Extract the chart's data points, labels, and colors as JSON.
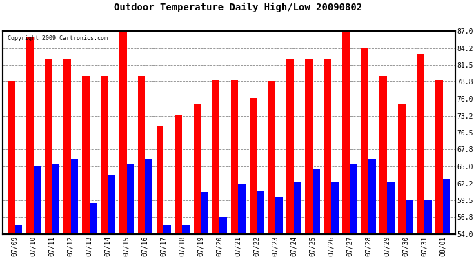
{
  "title": "Outdoor Temperature Daily High/Low 20090802",
  "copyright": "Copyright 2009 Cartronics.com",
  "dates": [
    "07/09",
    "07/10",
    "07/11",
    "07/12",
    "07/13",
    "07/14",
    "07/15",
    "07/16",
    "07/17",
    "07/18",
    "07/19",
    "07/20",
    "07/21",
    "07/22",
    "07/23",
    "07/24",
    "07/25",
    "07/26",
    "07/27",
    "07/28",
    "07/29",
    "07/30",
    "07/31",
    "08/01"
  ],
  "highs": [
    78.8,
    86.0,
    82.4,
    82.4,
    79.7,
    79.7,
    87.8,
    79.7,
    71.6,
    73.4,
    75.2,
    79.0,
    79.0,
    76.1,
    78.8,
    82.4,
    82.4,
    82.4,
    87.8,
    84.2,
    79.7,
    75.2,
    83.3,
    79.0
  ],
  "lows": [
    55.4,
    65.0,
    65.3,
    66.2,
    59.0,
    63.5,
    65.3,
    66.2,
    55.4,
    55.4,
    60.8,
    56.8,
    62.2,
    61.0,
    60.0,
    62.5,
    64.5,
    62.5,
    65.3,
    66.2,
    62.5,
    59.5,
    59.5,
    63.0
  ],
  "high_color": "#ff0000",
  "low_color": "#0000ff",
  "bg_color": "#ffffff",
  "plot_bg_color": "#ffffff",
  "grid_color": "#888888",
  "yticks": [
    54.0,
    56.8,
    59.5,
    62.2,
    65.0,
    67.8,
    70.5,
    73.2,
    76.0,
    78.8,
    81.5,
    84.2,
    87.0
  ],
  "ylim": [
    54.0,
    87.0
  ],
  "bar_width": 0.4
}
